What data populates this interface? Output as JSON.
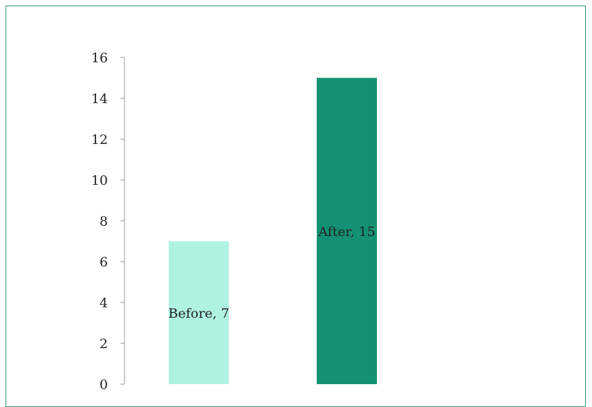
{
  "colors": {
    "border": "#2f8f73",
    "axis": "#999999",
    "text": "#222222"
  },
  "chart_data": {
    "type": "bar",
    "title": "",
    "xlabel": "",
    "ylabel": "",
    "categories": [
      "Before",
      "After"
    ],
    "values": [
      7,
      15
    ],
    "bar_colors": [
      "#b0f2e2",
      "#139273"
    ],
    "data_labels": [
      "Before, 7",
      "After, 15"
    ],
    "ylim": [
      0,
      16
    ],
    "y_ticks": [
      0,
      2,
      4,
      6,
      8,
      10,
      12,
      14,
      16
    ],
    "y_tick_labels": [
      "0",
      "2",
      "4",
      "6",
      "8",
      "10",
      "12",
      "14",
      "16"
    ],
    "grid": false,
    "legend": "none"
  }
}
